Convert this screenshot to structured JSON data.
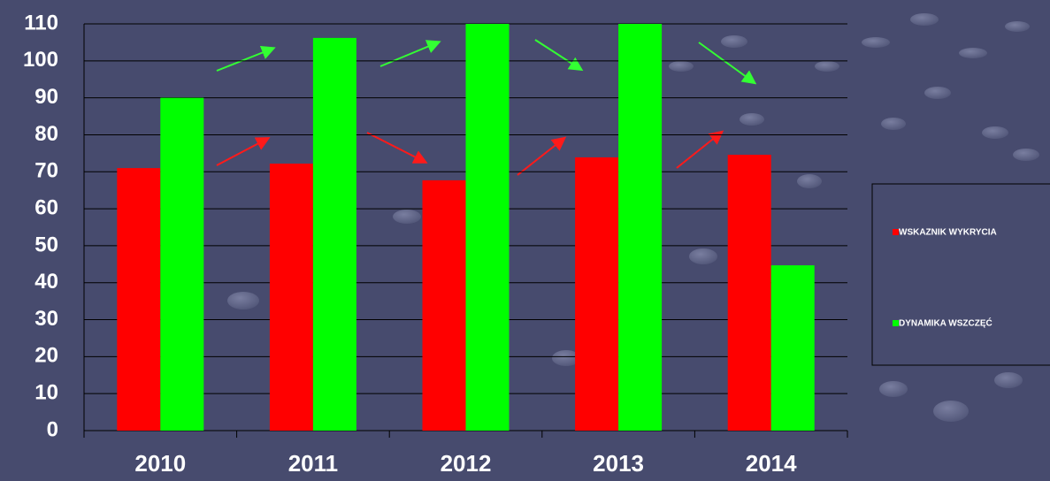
{
  "chart_data": {
    "type": "bar",
    "categories": [
      "2010",
      "2011",
      "2012",
      "2013",
      "2014"
    ],
    "series": [
      {
        "name": "WSKAZNIK WYKRYCIA",
        "color": "#ff0000",
        "values": [
          71,
          72.2,
          67.7,
          73.9,
          74.6
        ]
      },
      {
        "name": "DYNAMIKA WSZCZĘĆ",
        "color": "#00ff00",
        "values": [
          90,
          106.2,
          110,
          110,
          44.7
        ]
      }
    ],
    "ylim": [
      0,
      110
    ],
    "yticks": [
      0,
      10,
      20,
      30,
      40,
      50,
      60,
      70,
      80,
      90,
      100,
      110
    ],
    "grid": true
  }
}
